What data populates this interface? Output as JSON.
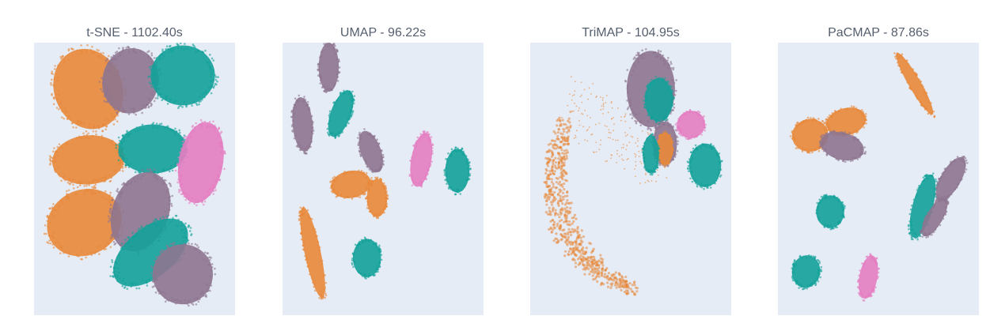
{
  "colors": {
    "background": "#e5ecf6",
    "orange": "#e8883a",
    "mauve": "#8e7590",
    "teal": "#13a19a",
    "pink": "#e47dc1"
  },
  "chart_data": [
    {
      "type": "scatter",
      "title": "t-SNE - 1102.40s",
      "xlabel": "",
      "ylabel": "",
      "grid": false,
      "legend": "none",
      "clusters": [
        {
          "color": "orange",
          "cx": 0.27,
          "cy": 0.17,
          "rx": 0.17,
          "ry": 0.15,
          "rot": -20
        },
        {
          "color": "mauve",
          "cx": 0.48,
          "cy": 0.14,
          "rx": 0.14,
          "ry": 0.12,
          "rot": 10
        },
        {
          "color": "teal",
          "cx": 0.74,
          "cy": 0.12,
          "rx": 0.16,
          "ry": 0.11,
          "rot": 0
        },
        {
          "color": "orange",
          "cx": 0.27,
          "cy": 0.43,
          "rx": 0.18,
          "ry": 0.09,
          "rot": -5
        },
        {
          "color": "teal",
          "cx": 0.59,
          "cy": 0.39,
          "rx": 0.17,
          "ry": 0.09,
          "rot": 0
        },
        {
          "color": "pink",
          "cx": 0.83,
          "cy": 0.44,
          "rx": 0.11,
          "ry": 0.15,
          "rot": 10
        },
        {
          "color": "orange",
          "cx": 0.25,
          "cy": 0.66,
          "rx": 0.19,
          "ry": 0.12,
          "rot": -25
        },
        {
          "color": "mauve",
          "cx": 0.53,
          "cy": 0.62,
          "rx": 0.14,
          "ry": 0.15,
          "rot": 20
        },
        {
          "color": "teal",
          "cx": 0.58,
          "cy": 0.77,
          "rx": 0.22,
          "ry": 0.09,
          "rot": -40
        },
        {
          "color": "mauve",
          "cx": 0.74,
          "cy": 0.85,
          "rx": 0.15,
          "ry": 0.11,
          "rot": -30
        }
      ]
    },
    {
      "type": "scatter",
      "title": "UMAP - 96.22s",
      "xlabel": "",
      "ylabel": "",
      "grid": false,
      "legend": "none",
      "clusters": [
        {
          "color": "mauve",
          "cx": 0.23,
          "cy": 0.09,
          "rx": 0.05,
          "ry": 0.09,
          "rot": 0
        },
        {
          "color": "teal",
          "cx": 0.29,
          "cy": 0.26,
          "rx": 0.05,
          "ry": 0.09,
          "rot": 20
        },
        {
          "color": "mauve",
          "cx": 0.1,
          "cy": 0.3,
          "rx": 0.05,
          "ry": 0.1,
          "rot": -5
        },
        {
          "color": "mauve",
          "cx": 0.44,
          "cy": 0.4,
          "rx": 0.05,
          "ry": 0.08,
          "rot": -20
        },
        {
          "color": "orange",
          "cx": 0.34,
          "cy": 0.52,
          "rx": 0.1,
          "ry": 0.05,
          "rot": -10
        },
        {
          "color": "orange",
          "cx": 0.47,
          "cy": 0.57,
          "rx": 0.05,
          "ry": 0.07,
          "rot": 0
        },
        {
          "color": "pink",
          "cx": 0.69,
          "cy": 0.43,
          "rx": 0.05,
          "ry": 0.1,
          "rot": 10
        },
        {
          "color": "teal",
          "cx": 0.87,
          "cy": 0.47,
          "rx": 0.06,
          "ry": 0.08,
          "rot": 0
        },
        {
          "color": "orange",
          "cx": 0.15,
          "cy": 0.77,
          "rx": 0.04,
          "ry": 0.17,
          "rot": -12
        },
        {
          "color": "teal",
          "cx": 0.42,
          "cy": 0.79,
          "rx": 0.07,
          "ry": 0.07,
          "rot": 0
        }
      ]
    },
    {
      "type": "scatter",
      "title": "TriMAP - 104.95s",
      "xlabel": "",
      "ylabel": "",
      "grid": false,
      "legend": "none",
      "clusters": [
        {
          "color": "mauve",
          "cx": 0.6,
          "cy": 0.17,
          "rx": 0.12,
          "ry": 0.14,
          "rot": 0
        },
        {
          "color": "teal",
          "cx": 0.64,
          "cy": 0.21,
          "rx": 0.07,
          "ry": 0.08,
          "rot": 0
        },
        {
          "color": "pink",
          "cx": 0.8,
          "cy": 0.3,
          "rx": 0.07,
          "ry": 0.05,
          "rot": -20
        },
        {
          "color": "mauve",
          "cx": 0.67,
          "cy": 0.37,
          "rx": 0.06,
          "ry": 0.08,
          "rot": 0
        },
        {
          "color": "orange",
          "cx": 0.67,
          "cy": 0.39,
          "rx": 0.04,
          "ry": 0.06,
          "rot": 0
        },
        {
          "color": "teal",
          "cx": 0.6,
          "cy": 0.41,
          "rx": 0.04,
          "ry": 0.07,
          "rot": 0
        },
        {
          "color": "teal",
          "cx": 0.87,
          "cy": 0.45,
          "rx": 0.08,
          "ry": 0.08,
          "rot": 0
        }
      ],
      "arc": {
        "color": "orange"
      }
    },
    {
      "type": "scatter",
      "title": "PaCMAP - 87.86s",
      "xlabel": "",
      "ylabel": "",
      "grid": false,
      "legend": "none",
      "clusters": [
        {
          "color": "orange",
          "cx": 0.68,
          "cy": 0.15,
          "rx": 0.03,
          "ry": 0.13,
          "rot": -30
        },
        {
          "color": "orange",
          "cx": 0.16,
          "cy": 0.34,
          "rx": 0.09,
          "ry": 0.06,
          "rot": -10
        },
        {
          "color": "orange",
          "cx": 0.34,
          "cy": 0.29,
          "rx": 0.1,
          "ry": 0.05,
          "rot": -15
        },
        {
          "color": "mauve",
          "cx": 0.32,
          "cy": 0.38,
          "rx": 0.11,
          "ry": 0.05,
          "rot": 15
        },
        {
          "color": "mauve",
          "cx": 0.86,
          "cy": 0.5,
          "rx": 0.05,
          "ry": 0.09,
          "rot": 30
        },
        {
          "color": "teal",
          "cx": 0.72,
          "cy": 0.6,
          "rx": 0.05,
          "ry": 0.12,
          "rot": 15
        },
        {
          "color": "mauve",
          "cx": 0.78,
          "cy": 0.64,
          "rx": 0.04,
          "ry": 0.08,
          "rot": 30
        },
        {
          "color": "teal",
          "cx": 0.26,
          "cy": 0.62,
          "rx": 0.07,
          "ry": 0.06,
          "rot": 0
        },
        {
          "color": "teal",
          "cx": 0.14,
          "cy": 0.84,
          "rx": 0.07,
          "ry": 0.06,
          "rot": 10
        },
        {
          "color": "pink",
          "cx": 0.45,
          "cy": 0.86,
          "rx": 0.045,
          "ry": 0.08,
          "rot": 10
        }
      ]
    }
  ]
}
